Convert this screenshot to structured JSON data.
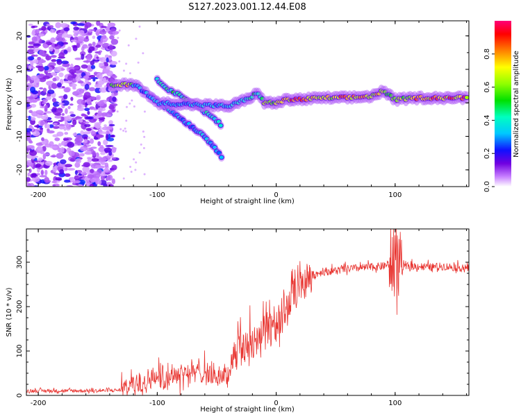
{
  "title": "S127.2023.001.12.44.E08",
  "chart_data": [
    {
      "type": "heatmap",
      "xlabel": "Height of straight line (km)",
      "ylabel": "Frequency (Hz)",
      "xlim": [
        -210,
        162
      ],
      "ylim": [
        -25,
        24.5
      ],
      "xticks": [
        -200,
        -100,
        0,
        100
      ],
      "yticks": [
        -20,
        -10,
        0,
        10,
        20
      ],
      "colorbar": {
        "label": "Normalized spectral amplitude",
        "ticks": [
          "0.0",
          "0.2",
          "0.4",
          "0.6",
          "0.8"
        ],
        "range": [
          0,
          1
        ]
      },
      "features": {
        "noise_region": {
          "x_range": [
            -210,
            -135
          ],
          "y_range": [
            -25,
            24
          ],
          "amplitude": 0.15
        },
        "main_track": [
          {
            "x": -138,
            "y": 5,
            "amp": 0.6
          },
          {
            "x": -125,
            "y": 5.5,
            "amp": 0.8
          },
          {
            "x": -118,
            "y": 5.5,
            "amp": 0.3
          },
          {
            "x": -100,
            "y": 0,
            "amp": 0.35
          },
          {
            "x": -40,
            "y": -1,
            "amp": 0.35
          },
          {
            "x": -25,
            "y": 1,
            "amp": 0.4
          },
          {
            "x": -15,
            "y": 3,
            "amp": 0.5
          },
          {
            "x": -10,
            "y": 0,
            "amp": 0.6
          },
          {
            "x": 0,
            "y": 0,
            "amp": 0.7
          },
          {
            "x": 10,
            "y": 1,
            "amp": 0.85
          },
          {
            "x": 20,
            "y": 1,
            "amp": 0.9
          },
          {
            "x": 40,
            "y": 1.5,
            "amp": 0.7
          },
          {
            "x": 60,
            "y": 1.5,
            "amp": 0.85
          },
          {
            "x": 80,
            "y": 2,
            "amp": 0.75
          },
          {
            "x": 90,
            "y": 3.5,
            "amp": 0.7
          },
          {
            "x": 100,
            "y": 1,
            "amp": 0.6
          },
          {
            "x": 120,
            "y": 1.5,
            "amp": 0.85
          },
          {
            "x": 162,
            "y": 1.5,
            "amp": 0.85
          }
        ],
        "upper_branch": [
          {
            "x": -100,
            "y": 7,
            "amp": 0.4
          },
          {
            "x": -90,
            "y": 4,
            "amp": 0.5
          },
          {
            "x": -70,
            "y": 0,
            "amp": 0.45
          },
          {
            "x": -55,
            "y": -4,
            "amp": 0.4
          },
          {
            "x": -45,
            "y": -7,
            "amp": 0.45
          }
        ],
        "lower_branch": [
          {
            "x": -105,
            "y": 2,
            "amp": 0.3
          },
          {
            "x": -90,
            "y": -2,
            "amp": 0.35
          },
          {
            "x": -75,
            "y": -6,
            "amp": 0.3
          },
          {
            "x": -60,
            "y": -10,
            "amp": 0.35
          },
          {
            "x": -50,
            "y": -14,
            "amp": 0.35
          },
          {
            "x": -44,
            "y": -18,
            "amp": 0.3
          }
        ]
      }
    },
    {
      "type": "line",
      "xlabel": "Height of straight line (km)",
      "ylabel": "SNR (10 * v/v)",
      "xlim": [
        -210,
        162
      ],
      "ylim": [
        0,
        375
      ],
      "xticks": [
        -200,
        -100,
        0,
        100
      ],
      "yticks": [
        0,
        100,
        200,
        300
      ],
      "color": "#e8332f",
      "series": [
        {
          "x": [
            -210,
            -180,
            -150,
            -130,
            -120,
            -110,
            -100,
            -90,
            -80,
            -70,
            -60,
            -50,
            -40,
            -35,
            -30,
            -25,
            -20,
            -15,
            -10,
            -5,
            0,
            5,
            10,
            15,
            20,
            25,
            30,
            40,
            50,
            60,
            70,
            80,
            90,
            95,
            100,
            105,
            110,
            120,
            130,
            140,
            150,
            162
          ],
          "y": [
            10,
            10,
            10,
            12,
            25,
            30,
            40,
            40,
            50,
            50,
            50,
            40,
            45,
            100,
            110,
            110,
            115,
            125,
            140,
            150,
            160,
            180,
            200,
            220,
            240,
            255,
            270,
            278,
            280,
            284,
            286,
            288,
            290,
            295,
            290,
            285,
            290,
            290,
            288,
            290,
            288,
            285
          ]
        }
      ]
    }
  ]
}
